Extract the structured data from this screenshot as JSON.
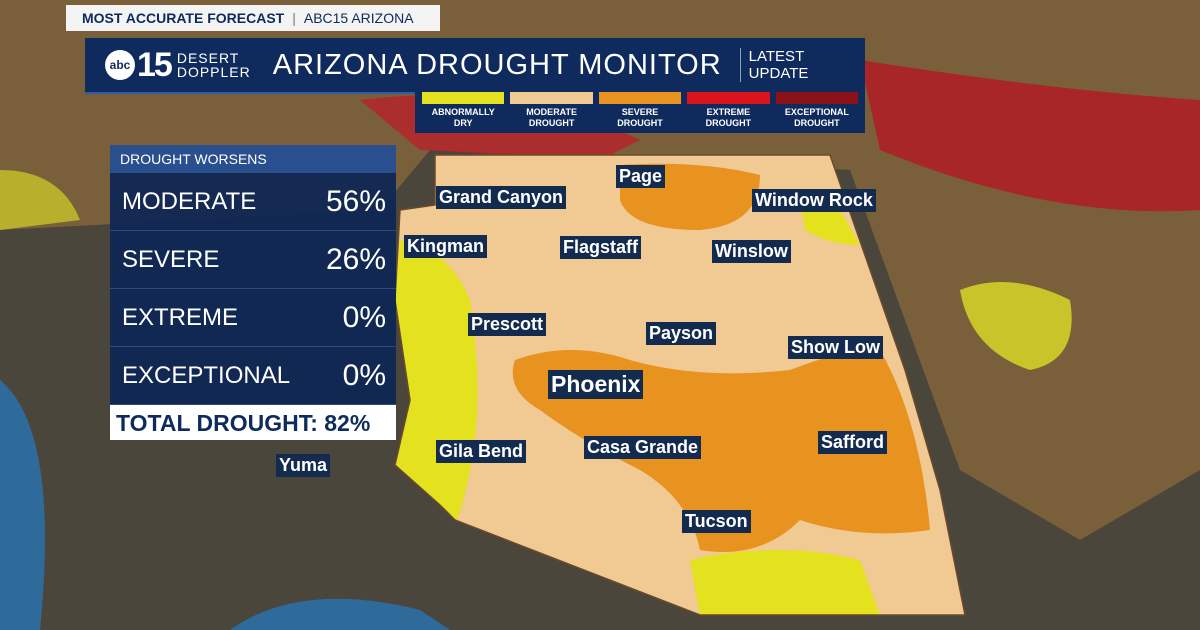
{
  "header": {
    "tag": "MOST ACCURATE FORECAST",
    "station": "ABC15 ARIZONA"
  },
  "logo": {
    "network": "abc",
    "number": "15",
    "line1": "DESERT",
    "line2": "DOPPLER"
  },
  "title": "ARIZONA DROUGHT MONITOR",
  "update": [
    "LATEST",
    "UPDATE"
  ],
  "legend": [
    {
      "label": "ABNORMALLY DRY",
      "color": "#e4e21f"
    },
    {
      "label": "MODERATE DROUGHT",
      "color": "#f1c993"
    },
    {
      "label": "SEVERE DROUGHT",
      "color": "#e8921f"
    },
    {
      "label": "EXTREME DROUGHT",
      "color": "#d9141d"
    },
    {
      "label": "EXCEPTIONAL DROUGHT",
      "color": "#8b1218"
    }
  ],
  "panel": {
    "heading": "DROUGHT WORSENS",
    "rows": [
      {
        "label": "MODERATE",
        "value": "56%"
      },
      {
        "label": "SEVERE",
        "value": "26%"
      },
      {
        "label": "EXTREME",
        "value": "0%"
      },
      {
        "label": "EXCEPTIONAL",
        "value": "0%"
      }
    ],
    "total": "TOTAL DROUGHT: 82%"
  },
  "cities": [
    "Grand Canyon",
    "Page",
    "Window Rock",
    "Kingman",
    "Flagstaff",
    "Winslow",
    "Prescott",
    "Payson",
    "Show Low",
    "Phoenix",
    "Yuma",
    "Gila Bend",
    "Casa Grande",
    "Safford",
    "Tucson"
  ]
}
